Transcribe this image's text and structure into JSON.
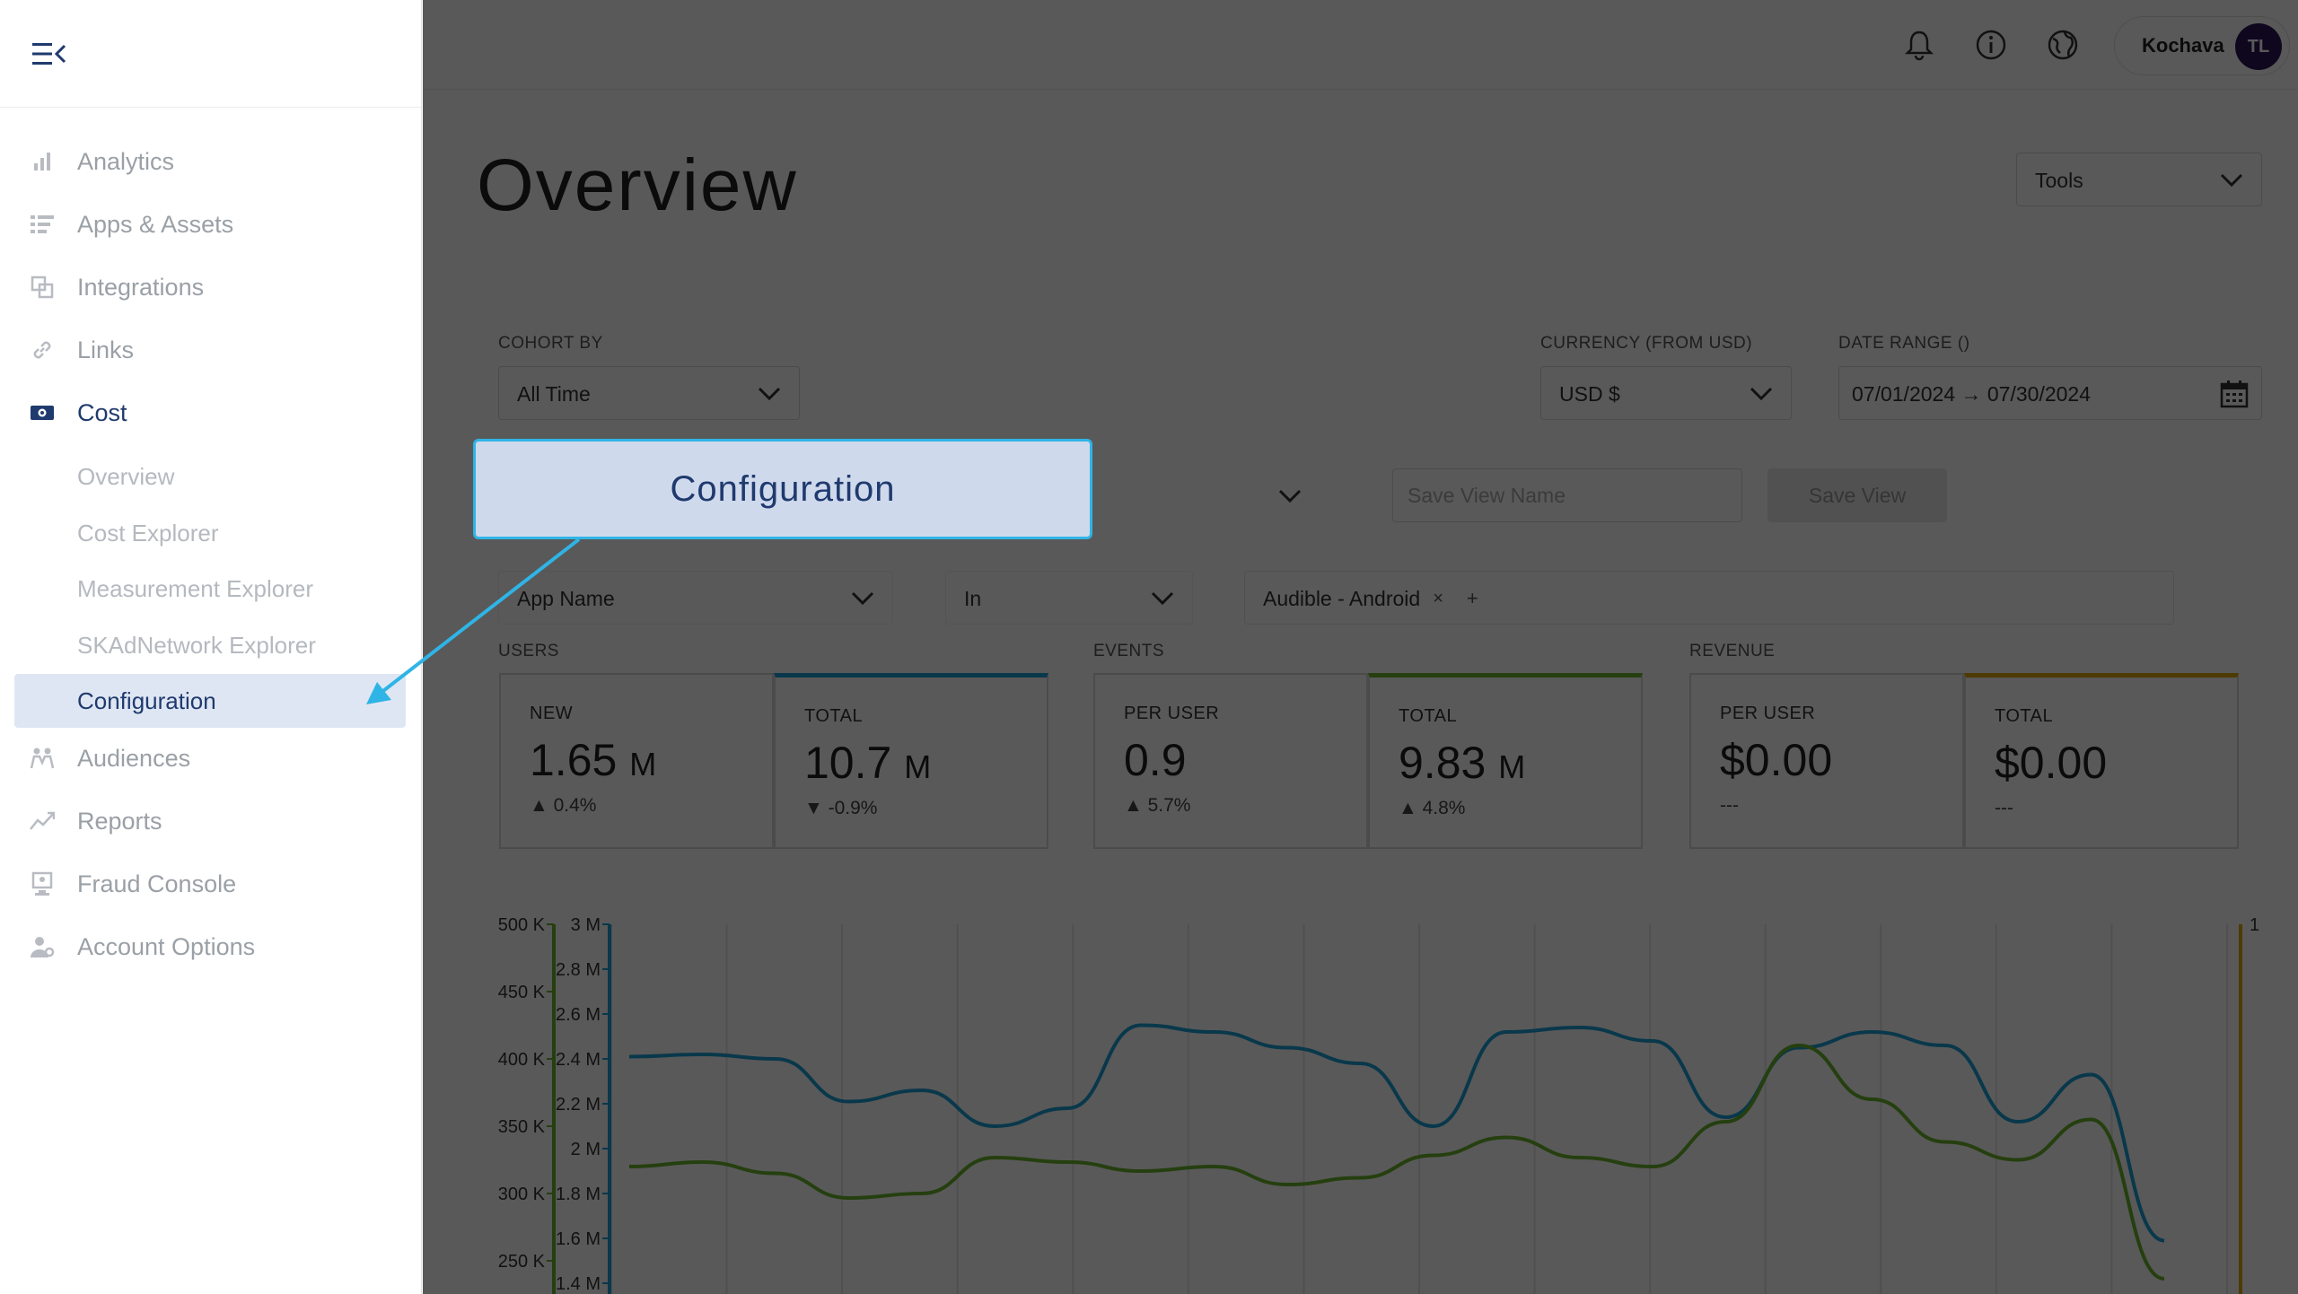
{
  "sidebar": {
    "items": [
      {
        "label": "Analytics",
        "icon": "bar-chart-icon"
      },
      {
        "label": "Apps & Assets",
        "icon": "list-icon"
      },
      {
        "label": "Integrations",
        "icon": "integrations-icon"
      },
      {
        "label": "Links",
        "icon": "link-icon"
      },
      {
        "label": "Cost",
        "icon": "money-icon"
      },
      {
        "label": "Audiences",
        "icon": "audiences-icon"
      },
      {
        "label": "Reports",
        "icon": "reports-icon"
      },
      {
        "label": "Fraud Console",
        "icon": "fraud-icon"
      },
      {
        "label": "Account Options",
        "icon": "account-icon"
      }
    ],
    "cost_sub": [
      "Overview",
      "Cost Explorer",
      "Measurement Explorer",
      "SKAdNetwork Explorer",
      "Configuration"
    ]
  },
  "header": {
    "account_name": "Kochava",
    "avatar_initials": "TL"
  },
  "page": {
    "title": "Overview",
    "tools_label": "Tools"
  },
  "filters": {
    "cohort_label": "COHORT BY",
    "cohort_value": "All Time",
    "currency_label": "CURRENCY (FROM USD)",
    "currency_value": "USD $",
    "date_label": "DATE RANGE ()",
    "date_value": "07/01/2024 → 07/30/2024",
    "save_view_placeholder": "Save View Name",
    "save_view_button": "Save View",
    "filter_field": "App Name",
    "filter_operator": "In",
    "filter_chip": "Audible - Android",
    "chip_remove": "×",
    "chip_add": "+"
  },
  "metrics": {
    "users_label": "USERS",
    "events_label": "EVENTS",
    "revenue_label": "REVENUE",
    "cards": [
      {
        "title": "NEW",
        "value": "1.65",
        "unit": "M",
        "delta": "▲ 0.4%",
        "accent": ""
      },
      {
        "title": "TOTAL",
        "value": "10.7",
        "unit": "M",
        "delta": "▼ -0.9%",
        "accent": "#1aa0d8"
      },
      {
        "title": "PER USER",
        "value": "0.9",
        "unit": "",
        "delta": "▲ 5.7%",
        "accent": ""
      },
      {
        "title": "TOTAL",
        "value": "9.83",
        "unit": "M",
        "delta": "▲ 4.8%",
        "accent": "#6ab42d"
      },
      {
        "title": "PER USER",
        "value": "$0.00",
        "unit": "",
        "delta": "---",
        "accent": ""
      },
      {
        "title": "TOTAL",
        "value": "$0.00",
        "unit": "",
        "delta": "---",
        "accent": "#e0a800"
      }
    ]
  },
  "chart_data": {
    "type": "line",
    "left_axis_ticks": [
      "500 K",
      "450 K",
      "400 K",
      "350 K",
      "300 K",
      "250 K"
    ],
    "mid_axis_ticks": [
      "3 M",
      "2.8 M",
      "2.6 M",
      "2.4 M",
      "2.2 M",
      "2 M",
      "1.8 M",
      "1.6 M",
      "1.4 M"
    ],
    "right_axis_ticks": [
      "1"
    ],
    "left_ylim": [
      250000,
      500000
    ],
    "mid_ylim": [
      1400000,
      3000000
    ],
    "series": [
      {
        "color": "#1aa0d8",
        "values": [
          2.41,
          2.42,
          2.4,
          2.21,
          2.26,
          2.1,
          2.18,
          2.55,
          2.52,
          2.45,
          2.38,
          2.1,
          2.52,
          2.54,
          2.48,
          2.14,
          2.45,
          2.52,
          2.46,
          2.12,
          2.33,
          1.59
        ]
      },
      {
        "color": "#6ab42d",
        "values": [
          1.92,
          1.94,
          1.89,
          1.78,
          1.8,
          1.96,
          1.94,
          1.9,
          1.92,
          1.84,
          1.87,
          1.97,
          2.05,
          1.96,
          1.92,
          2.12,
          2.46,
          2.22,
          2.03,
          1.95,
          2.13,
          1.42
        ]
      }
    ],
    "grid": true
  },
  "callout": {
    "label": "Configuration"
  }
}
